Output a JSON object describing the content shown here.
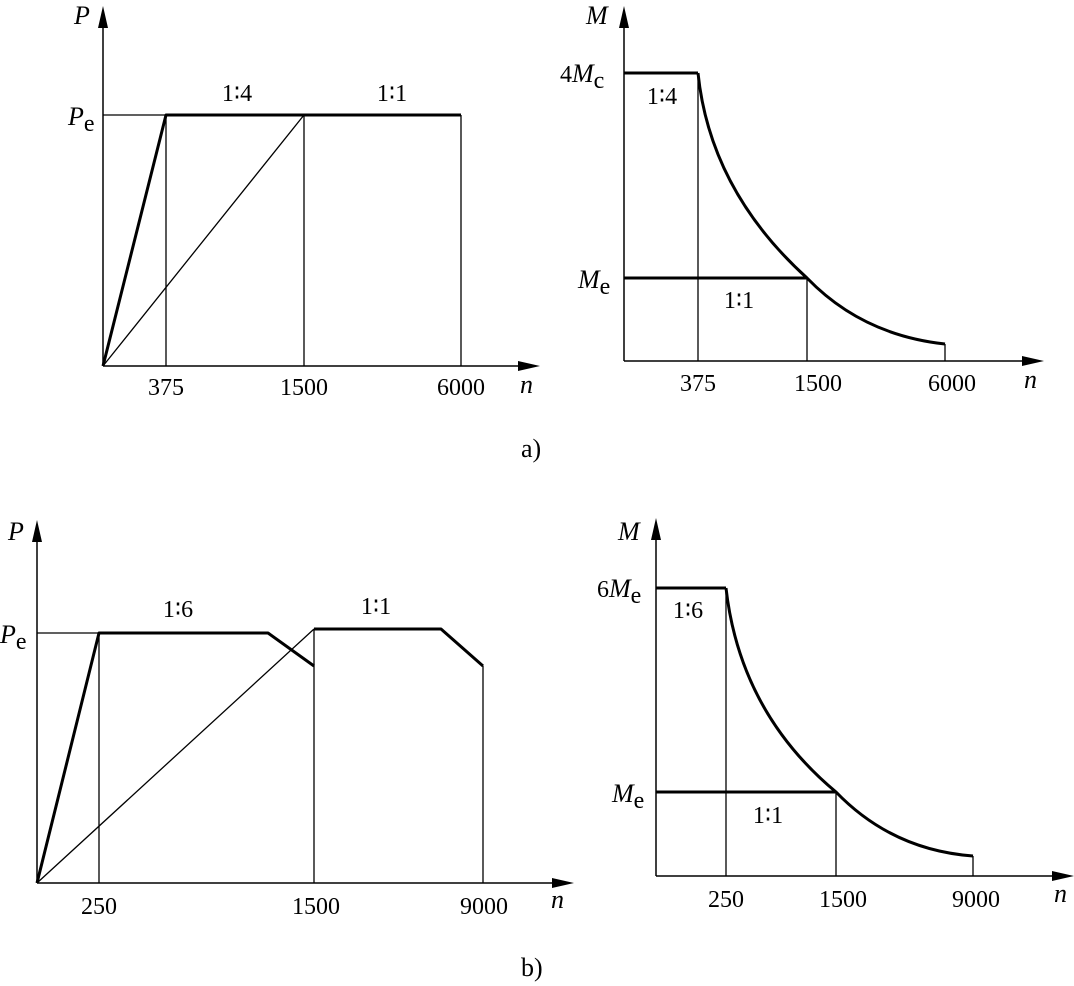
{
  "figure_a": {
    "caption": "a)",
    "power_chart": {
      "y_axis_label": "P",
      "x_axis_label": "n",
      "y_level_label_main": "P",
      "y_level_label_sub": "e",
      "x_ticks": [
        "375",
        "1500",
        "6000"
      ],
      "ratio_labels": [
        "1∶4",
        "1∶1"
      ]
    },
    "torque_chart": {
      "y_axis_label": "M",
      "x_axis_label": "n",
      "high_level_label_prefix": "4",
      "high_level_label_main": "M",
      "high_level_label_sub": "c",
      "low_level_label_main": "M",
      "low_level_label_sub": "e",
      "x_ticks": [
        "375",
        "1500",
        "6000"
      ],
      "ratio_labels": [
        "1∶4",
        "1∶1"
      ]
    }
  },
  "figure_b": {
    "caption": "b)",
    "power_chart": {
      "y_axis_label": "P",
      "x_axis_label": "n",
      "y_level_label_main": "P",
      "y_level_label_sub": "e",
      "x_ticks": [
        "250",
        "1500",
        "9000"
      ],
      "ratio_labels": [
        "1∶6",
        "1∶1"
      ]
    },
    "torque_chart": {
      "y_axis_label": "M",
      "x_axis_label": "n",
      "high_level_label_prefix": "6",
      "high_level_label_main": "M",
      "high_level_label_sub": "e",
      "low_level_label_main": "M",
      "low_level_label_sub": "e",
      "x_ticks": [
        "250",
        "1500",
        "9000"
      ],
      "ratio_labels": [
        "1∶6",
        "1∶1"
      ]
    }
  }
}
